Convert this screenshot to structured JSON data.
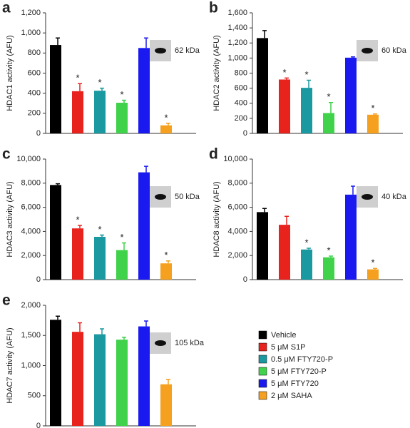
{
  "legend": {
    "categories": [
      "Vehicle",
      "5 μM S1P",
      "0.5 μM FTY720-P",
      "5 μM FTY720-P",
      "5 μM FTY720",
      "2 μM SAHA"
    ],
    "colors": [
      "#000000",
      "#e8231e",
      "#1a9aa0",
      "#3fd24a",
      "#1a1af0",
      "#f5a01e"
    ]
  },
  "chart_data": [
    {
      "type": "bar",
      "panel": "a",
      "ylabel": "HDAC1 activity (AFU)",
      "blot_label": "62 kDa",
      "values": [
        880,
        420,
        425,
        305,
        850,
        80
      ],
      "errors": [
        70,
        75,
        25,
        25,
        100,
        20
      ],
      "markers": [
        null,
        "*",
        "*",
        "*",
        null,
        "*"
      ],
      "ylim": [
        0,
        1200
      ],
      "yticks": [
        0,
        200,
        400,
        600,
        800,
        {
          "value": 1000,
          "label": "1,000"
        },
        {
          "value": 1200,
          "label": "1,200"
        }
      ]
    },
    {
      "type": "bar",
      "panel": "b",
      "ylabel": "HDAC2 activity (AFU)",
      "blot_label": "60 kDa",
      "values": [
        1265,
        715,
        605,
        270,
        1005,
        248
      ],
      "errors": [
        100,
        20,
        100,
        140,
        10,
        10
      ],
      "markers": [
        null,
        "*",
        "*",
        "*",
        null,
        "*"
      ],
      "ylim": [
        0,
        1600
      ],
      "yticks": [
        0,
        200,
        400,
        600,
        800,
        {
          "value": 1000,
          "label": "1,000"
        },
        {
          "value": 1200,
          "label": "1,200"
        },
        {
          "value": 1400,
          "label": "1,400"
        },
        {
          "value": 1600,
          "label": "1,600"
        }
      ]
    },
    {
      "type": "bar",
      "panel": "c",
      "ylabel": "HDAC3 activity (AFU)",
      "blot_label": "50 kDa",
      "values": [
        7850,
        4250,
        3550,
        2450,
        8900,
        1350
      ],
      "errors": [
        100,
        250,
        150,
        600,
        500,
        200
      ],
      "markers": [
        null,
        "*",
        "*",
        "*",
        null,
        "*"
      ],
      "ylim": [
        0,
        10000
      ],
      "yticks": [
        0,
        {
          "value": 2000,
          "label": "2,000"
        },
        {
          "value": 4000,
          "label": "4,000"
        },
        {
          "value": 6000,
          "label": "6,000"
        },
        {
          "value": 8000,
          "label": "8,000"
        },
        {
          "value": 10000,
          "label": "10,000"
        }
      ]
    },
    {
      "type": "bar",
      "panel": "d",
      "ylabel": "HDAC8 activity (AFU)",
      "blot_label": "40 kDa",
      "values": [
        5600,
        4550,
        2500,
        1850,
        7050,
        850
      ],
      "errors": [
        300,
        700,
        100,
        100,
        700,
        80
      ],
      "markers": [
        null,
        null,
        "*",
        "*",
        null,
        "*"
      ],
      "ylim": [
        0,
        10000
      ],
      "yticks": [
        0,
        {
          "value": 2000,
          "label": "2,000"
        },
        {
          "value": 4000,
          "label": "4,000"
        },
        {
          "value": 6000,
          "label": "6,000"
        },
        {
          "value": 8000,
          "label": "8,000"
        },
        {
          "value": 10000,
          "label": "10,000"
        }
      ]
    },
    {
      "type": "bar",
      "panel": "e",
      "ylabel": "HDAC7 activity (AFU)",
      "blot_label": "105 kDa",
      "values": [
        1760,
        1560,
        1520,
        1430,
        1650,
        690
      ],
      "errors": [
        60,
        150,
        90,
        40,
        90,
        80
      ],
      "ylim": [
        0,
        2000
      ],
      "yticks": [
        0,
        500,
        {
          "value": 1000,
          "label": "1,000"
        },
        {
          "value": 1500,
          "label": "1,500"
        },
        {
          "value": 2000,
          "label": "2,000"
        }
      ]
    }
  ]
}
